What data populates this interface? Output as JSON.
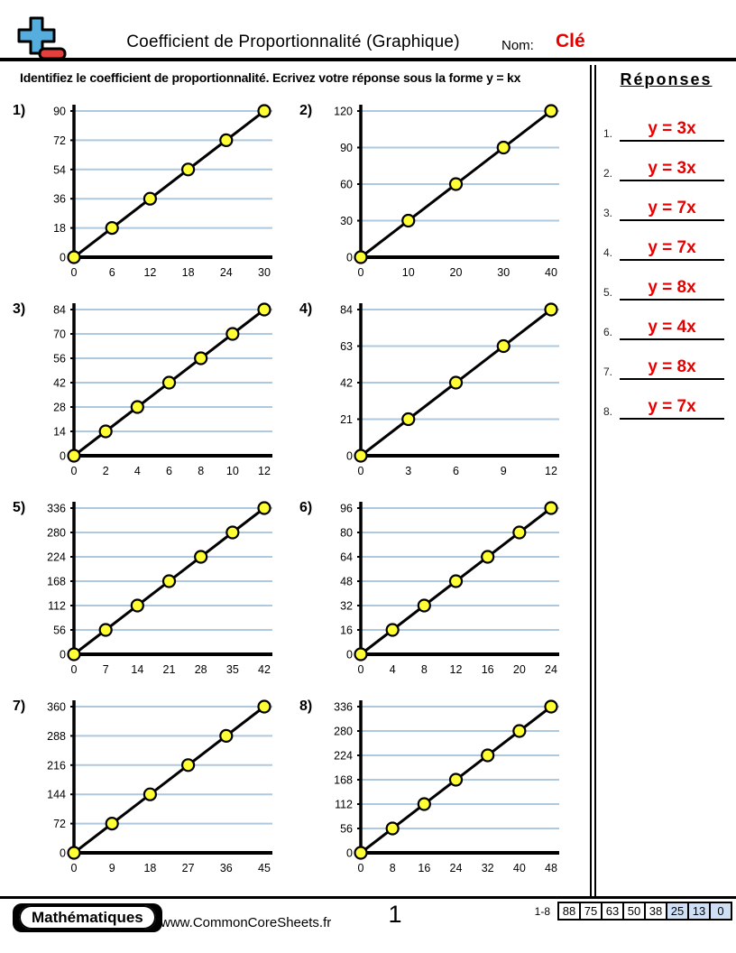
{
  "header": {
    "title": "Coefficient de Proportionnalité (Graphique)",
    "name_label": "Nom:",
    "name_value": "Clé",
    "instruction": "Identifiez le coefficient de proportionnalité. Ecrivez votre réponse sous la forme y = kx"
  },
  "colors": {
    "answer_red": "#e80000",
    "name_red": "#e80000",
    "gridline_blue": "#aec8df",
    "point_yellow": "#ffff33",
    "logo_plus_blue": "#55aedd",
    "logo_minus_red": "#e2403d",
    "score_highlight": "#cfdff5",
    "axis_black": "#000000"
  },
  "chart_data": [
    {
      "number": "1",
      "type": "line",
      "x_ticks": [
        0,
        6,
        12,
        18,
        24,
        30
      ],
      "y_ticks": [
        0,
        18,
        36,
        54,
        72,
        90
      ],
      "xlim": [
        0,
        30
      ],
      "ylim": [
        0,
        90
      ],
      "k": 3,
      "equation": "y = 3x",
      "points": [
        [
          0,
          0
        ],
        [
          6,
          18
        ],
        [
          12,
          36
        ],
        [
          18,
          54
        ],
        [
          24,
          72
        ],
        [
          30,
          90
        ]
      ]
    },
    {
      "number": "2",
      "type": "line",
      "x_ticks": [
        0,
        10,
        20,
        30,
        40
      ],
      "y_ticks": [
        0,
        30,
        60,
        90,
        120
      ],
      "xlim": [
        0,
        40
      ],
      "ylim": [
        0,
        120
      ],
      "k": 3,
      "equation": "y = 3x",
      "points": [
        [
          0,
          0
        ],
        [
          10,
          30
        ],
        [
          20,
          60
        ],
        [
          30,
          90
        ],
        [
          40,
          120
        ]
      ]
    },
    {
      "number": "3",
      "type": "line",
      "x_ticks": [
        0,
        2,
        4,
        6,
        8,
        10,
        12
      ],
      "y_ticks": [
        0,
        14,
        28,
        42,
        56,
        70,
        84
      ],
      "xlim": [
        0,
        12
      ],
      "ylim": [
        0,
        84
      ],
      "k": 7,
      "equation": "y = 7x",
      "points": [
        [
          0,
          0
        ],
        [
          2,
          14
        ],
        [
          4,
          28
        ],
        [
          6,
          42
        ],
        [
          8,
          56
        ],
        [
          10,
          70
        ],
        [
          12,
          84
        ]
      ]
    },
    {
      "number": "4",
      "type": "line",
      "x_ticks": [
        0,
        3,
        6,
        9,
        12
      ],
      "y_ticks": [
        0,
        21,
        42,
        63,
        84
      ],
      "xlim": [
        0,
        12
      ],
      "ylim": [
        0,
        84
      ],
      "k": 7,
      "equation": "y = 7x",
      "points": [
        [
          0,
          0
        ],
        [
          3,
          21
        ],
        [
          6,
          42
        ],
        [
          9,
          63
        ],
        [
          12,
          84
        ]
      ]
    },
    {
      "number": "5",
      "type": "line",
      "x_ticks": [
        0,
        7,
        14,
        21,
        28,
        35,
        42
      ],
      "y_ticks": [
        0,
        56,
        112,
        168,
        224,
        280,
        336
      ],
      "xlim": [
        0,
        42
      ],
      "ylim": [
        0,
        336
      ],
      "k": 8,
      "equation": "y = 8x",
      "points": [
        [
          0,
          0
        ],
        [
          7,
          56
        ],
        [
          14,
          112
        ],
        [
          21,
          168
        ],
        [
          28,
          224
        ],
        [
          35,
          280
        ],
        [
          42,
          336
        ]
      ]
    },
    {
      "number": "6",
      "type": "line",
      "x_ticks": [
        0,
        4,
        8,
        12,
        16,
        20,
        24
      ],
      "y_ticks": [
        0,
        16,
        32,
        48,
        64,
        80,
        96
      ],
      "xlim": [
        0,
        24
      ],
      "ylim": [
        0,
        96
      ],
      "k": 4,
      "equation": "y = 4x",
      "points": [
        [
          0,
          0
        ],
        [
          4,
          16
        ],
        [
          8,
          32
        ],
        [
          12,
          48
        ],
        [
          16,
          64
        ],
        [
          20,
          80
        ],
        [
          24,
          96
        ]
      ]
    },
    {
      "number": "7",
      "type": "line",
      "x_ticks": [
        0,
        9,
        18,
        27,
        36,
        45
      ],
      "y_ticks": [
        0,
        72,
        144,
        216,
        288,
        360
      ],
      "xlim": [
        0,
        45
      ],
      "ylim": [
        0,
        360
      ],
      "k": 8,
      "equation": "y = 8x",
      "points": [
        [
          0,
          0
        ],
        [
          9,
          72
        ],
        [
          18,
          144
        ],
        [
          27,
          216
        ],
        [
          36,
          288
        ],
        [
          45,
          360
        ]
      ]
    },
    {
      "number": "8",
      "type": "line",
      "x_ticks": [
        0,
        8,
        16,
        24,
        32,
        40,
        48
      ],
      "y_ticks": [
        0,
        56,
        112,
        168,
        224,
        280,
        336
      ],
      "xlim": [
        0,
        48
      ],
      "ylim": [
        0,
        336
      ],
      "k": 7,
      "equation": "y = 7x",
      "points": [
        [
          0,
          0
        ],
        [
          8,
          56
        ],
        [
          16,
          112
        ],
        [
          24,
          168
        ],
        [
          32,
          224
        ],
        [
          40,
          280
        ],
        [
          48,
          336
        ]
      ]
    }
  ],
  "answers": {
    "heading": "Réponses",
    "items": [
      {
        "number": "1.",
        "value": "y = 3x"
      },
      {
        "number": "2.",
        "value": "y = 3x"
      },
      {
        "number": "3.",
        "value": "y = 7x"
      },
      {
        "number": "4.",
        "value": "y = 7x"
      },
      {
        "number": "5.",
        "value": "y = 8x"
      },
      {
        "number": "6.",
        "value": "y = 4x"
      },
      {
        "number": "7.",
        "value": "y = 8x"
      },
      {
        "number": "8.",
        "value": "y = 7x"
      }
    ]
  },
  "footer": {
    "brand": "Mathématiques",
    "website": "www.CommonCoreSheets.fr",
    "page_number": "1",
    "score_label": "1-8",
    "score_cells": [
      {
        "value": "88",
        "highlight": false
      },
      {
        "value": "75",
        "highlight": false
      },
      {
        "value": "63",
        "highlight": false
      },
      {
        "value": "50",
        "highlight": false
      },
      {
        "value": "38",
        "highlight": false
      },
      {
        "value": "25",
        "highlight": true
      },
      {
        "value": "13",
        "highlight": true
      },
      {
        "value": "0",
        "highlight": true
      }
    ]
  }
}
